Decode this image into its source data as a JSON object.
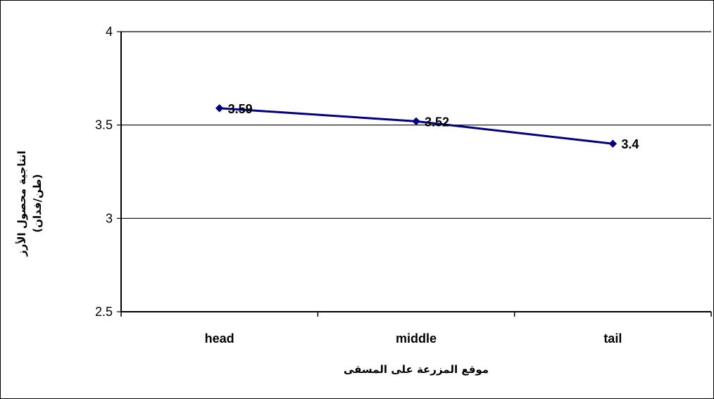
{
  "chart_data": {
    "type": "line",
    "title": "",
    "xlabel": "موقع المزرعة على المسقى",
    "ylabel_lines": [
      "انتاجية محصول الأرز",
      "(طن/فدان)"
    ],
    "categories": [
      "head",
      "middle",
      "tail"
    ],
    "series": [
      {
        "values": [
          3.59,
          3.52,
          3.4
        ],
        "color": "#000080"
      }
    ],
    "data_labels": [
      "3.59",
      "3.52",
      "3.4"
    ],
    "ylim": [
      2.5,
      4
    ],
    "yticks": [
      2.5,
      3,
      3.5,
      4
    ],
    "ytick_labels": [
      "2.5",
      "3",
      "3.5",
      "4"
    ],
    "grid": true,
    "legend": "none"
  }
}
